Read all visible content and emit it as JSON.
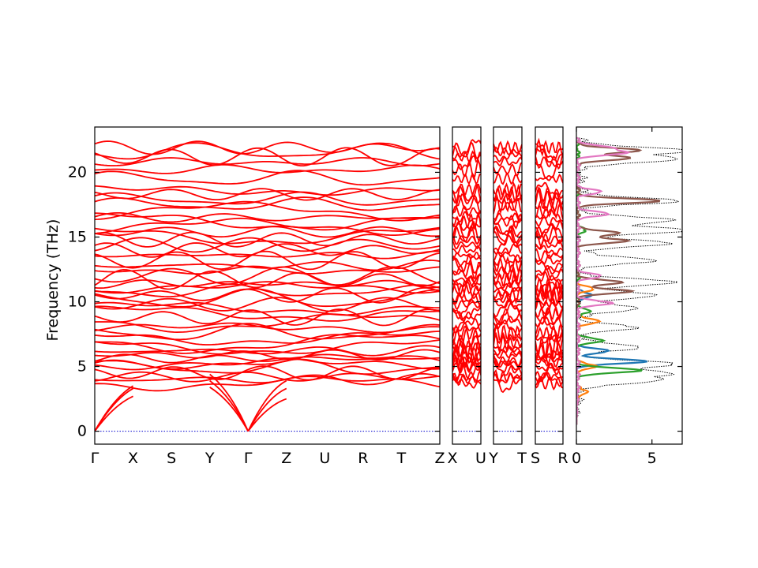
{
  "chart_data": {
    "type": "line",
    "title": "",
    "ylabel": "Frequency (THz)",
    "ylim": [
      -1,
      23.5
    ],
    "yticks": [
      0,
      5,
      10,
      15,
      20
    ],
    "grid": false,
    "legend": "none",
    "band_color": "#ff0000",
    "zero_line_color": "#0000cd",
    "dos_total_color": "#000000",
    "panels": [
      {
        "labels": [
          "Γ",
          "X",
          "S",
          "Y",
          "Γ",
          "Z",
          "U",
          "R",
          "T",
          "Z"
        ],
        "flat_x": [
          0.0,
          0.09,
          0.17,
          0.26,
          0.35
        ]
      },
      {
        "labels": [
          "X",
          "U"
        ]
      },
      {
        "labels": [
          "Y",
          "T"
        ]
      },
      {
        "labels": [
          "S",
          "R"
        ]
      }
    ],
    "acoustic_dip_points": [
      "Γ",
      "Γ"
    ],
    "band_levels": [
      3.7,
      4.0,
      4.2,
      4.5,
      4.9,
      5.2,
      5.4,
      5.6,
      5.9,
      6.2,
      6.5,
      6.8,
      7.2,
      7.6,
      8.0,
      8.4,
      8.8,
      9.1,
      9.5,
      9.8,
      10.2,
      10.5,
      10.8,
      11.1,
      11.4,
      11.7,
      12.0,
      12.4,
      12.8,
      13.2,
      13.6,
      14.0,
      14.4,
      14.8,
      15.1,
      15.4,
      15.8,
      16.2,
      16.5,
      17.0,
      17.5,
      17.9,
      18.3,
      18.6,
      19.5,
      20.2,
      20.8,
      21.2,
      21.6,
      21.9
    ],
    "dos": {
      "xlim": [
        0,
        7
      ],
      "xticks": [
        0,
        5
      ],
      "total_peaks": [
        {
          "f": 3.9,
          "d": 5.0
        },
        {
          "f": 4.5,
          "d": 5.5
        },
        {
          "f": 5.2,
          "d": 6.0
        },
        {
          "f": 6.5,
          "d": 4.0
        },
        {
          "f": 8.0,
          "d": 3.5
        },
        {
          "f": 9.5,
          "d": 4.0
        },
        {
          "f": 10.5,
          "d": 5.2
        },
        {
          "f": 11.5,
          "d": 6.5
        },
        {
          "f": 13.2,
          "d": 5.0
        },
        {
          "f": 14.5,
          "d": 6.0
        },
        {
          "f": 15.5,
          "d": 7.0
        },
        {
          "f": 16.3,
          "d": 6.2
        },
        {
          "f": 17.8,
          "d": 6.5
        },
        {
          "f": 21.0,
          "d": 6.5
        },
        {
          "f": 21.7,
          "d": 7.0
        }
      ],
      "projections": [
        {
          "color": "#1f77b4",
          "peaks": [
            {
              "f": 5.4,
              "d": 4.5
            },
            {
              "f": 6.2,
              "d": 2.0
            },
            {
              "f": 10.5,
              "d": 1.0
            }
          ]
        },
        {
          "color": "#ff7f0e",
          "peaks": [
            {
              "f": 3.0,
              "d": 0.8
            },
            {
              "f": 5.0,
              "d": 1.2
            },
            {
              "f": 8.5,
              "d": 1.5
            },
            {
              "f": 11.0,
              "d": 1.0
            }
          ]
        },
        {
          "color": "#2ca02c",
          "peaks": [
            {
              "f": 4.7,
              "d": 4.3
            },
            {
              "f": 7.0,
              "d": 1.6
            },
            {
              "f": 9.3,
              "d": 0.8
            },
            {
              "f": 15.5,
              "d": 0.5
            }
          ]
        },
        {
          "color": "#8c564b",
          "peaks": [
            {
              "f": 10.8,
              "d": 3.5
            },
            {
              "f": 11.5,
              "d": 3.0
            },
            {
              "f": 14.7,
              "d": 3.2
            },
            {
              "f": 15.3,
              "d": 2.8
            },
            {
              "f": 17.8,
              "d": 5.5
            },
            {
              "f": 21.1,
              "d": 3.5
            },
            {
              "f": 21.7,
              "d": 4.2
            }
          ]
        },
        {
          "color": "#e377c2",
          "peaks": [
            {
              "f": 9.9,
              "d": 2.2
            },
            {
              "f": 12.0,
              "d": 1.5
            },
            {
              "f": 16.8,
              "d": 2.0
            },
            {
              "f": 18.5,
              "d": 1.5
            },
            {
              "f": 21.5,
              "d": 3.0
            },
            {
              "f": 21.9,
              "d": 2.2
            }
          ]
        }
      ]
    }
  }
}
